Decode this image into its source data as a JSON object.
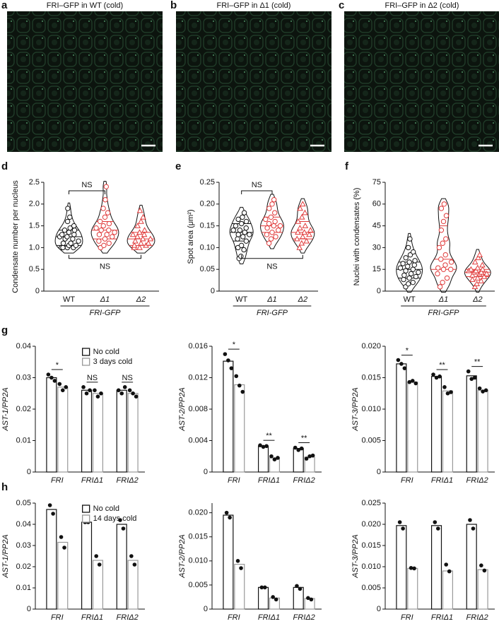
{
  "images": [
    {
      "panel": "a",
      "title": "FRI–GFP in WT (cold)"
    },
    {
      "panel": "b",
      "title": "FRI–GFP in Δ1 (cold)"
    },
    {
      "panel": "c",
      "title": "FRI–GFP in Δ2 (cold)"
    }
  ],
  "chart_data": [
    {
      "type": "violin",
      "panel": "d",
      "ylabel": "Condensate number per nucleus",
      "xlabel": "FRI-GFP",
      "ylim": [
        0,
        2.5
      ],
      "yticks": [
        0,
        0.5,
        {
          "value": 1,
          "label": "1.0"
        },
        1.5,
        {
          "value": 2,
          "label": "2.0"
        },
        2.5
      ],
      "annotations": [
        "NS",
        "NS"
      ],
      "groups": [
        {
          "name": "WT",
          "color": "#111111",
          "marker": "circle",
          "quartiles": [
            1.05,
            1.25,
            1.4
          ],
          "values": [
            1.0,
            1.0,
            1.0,
            1.0,
            1.05,
            1.05,
            1.1,
            1.1,
            1.15,
            1.2,
            1.2,
            1.25,
            1.25,
            1.3,
            1.3,
            1.35,
            1.4,
            1.4,
            1.45,
            1.5,
            1.6,
            1.7,
            1.9
          ]
        },
        {
          "name": "Δ1",
          "color": "#e03a3a",
          "marker": "circle",
          "quartiles": [
            1.2,
            1.4,
            1.6
          ],
          "values": [
            1.0,
            1.05,
            1.1,
            1.15,
            1.2,
            1.25,
            1.3,
            1.3,
            1.35,
            1.4,
            1.4,
            1.45,
            1.5,
            1.55,
            1.6,
            1.7,
            1.8,
            1.9,
            2.1,
            2.4
          ]
        },
        {
          "name": "Δ2",
          "color": "#e03a3a",
          "marker": "triangle",
          "quartiles": [
            1.05,
            1.2,
            1.35
          ],
          "values": [
            1.0,
            1.0,
            1.05,
            1.05,
            1.1,
            1.1,
            1.15,
            1.2,
            1.2,
            1.25,
            1.3,
            1.3,
            1.35,
            1.4,
            1.5,
            1.6,
            1.7,
            1.85
          ]
        }
      ]
    },
    {
      "type": "violin",
      "panel": "e",
      "ylabel": "Spot area (μm²)",
      "xlabel": "FRI-GFP",
      "ylim": [
        0,
        0.25
      ],
      "yticks": [
        0,
        0.05,
        {
          "value": 0.1,
          "label": "0.10"
        },
        0.15,
        {
          "value": 0.2,
          "label": "0.20"
        },
        0.25
      ],
      "annotations": [
        "NS",
        "NS"
      ],
      "groups": [
        {
          "name": "WT",
          "color": "#111111",
          "marker": "circle",
          "quartiles": [
            0.115,
            0.135,
            0.155
          ],
          "values": [
            0.075,
            0.08,
            0.095,
            0.1,
            0.105,
            0.115,
            0.12,
            0.125,
            0.13,
            0.13,
            0.135,
            0.14,
            0.14,
            0.145,
            0.15,
            0.155,
            0.16,
            0.165,
            0.17,
            0.18
          ]
        },
        {
          "name": "Δ1",
          "color": "#e03a3a",
          "marker": "circle",
          "quartiles": [
            0.135,
            0.15,
            0.17
          ],
          "values": [
            0.11,
            0.12,
            0.125,
            0.13,
            0.135,
            0.14,
            0.145,
            0.15,
            0.15,
            0.155,
            0.16,
            0.165,
            0.17,
            0.18,
            0.19,
            0.2,
            0.21
          ]
        },
        {
          "name": "Δ2",
          "color": "#e03a3a",
          "marker": "triangle",
          "quartiles": [
            0.12,
            0.135,
            0.16
          ],
          "values": [
            0.1,
            0.11,
            0.115,
            0.12,
            0.125,
            0.13,
            0.135,
            0.135,
            0.14,
            0.145,
            0.15,
            0.16,
            0.17,
            0.18,
            0.19,
            0.2
          ]
        }
      ]
    },
    {
      "type": "violin",
      "panel": "f",
      "ylabel": "Nuclei with condensates (%)",
      "xlabel": "FRI-GFP",
      "ylim": [
        0,
        75
      ],
      "yticks": [
        0,
        15,
        30,
        45,
        60,
        75
      ],
      "groups": [
        {
          "name": "WT",
          "color": "#111111",
          "marker": "circle",
          "quartiles": [
            9,
            15,
            20
          ],
          "values": [
            3,
            5,
            6,
            8,
            9,
            10,
            11,
            12,
            13,
            14,
            15,
            16,
            17,
            18,
            19,
            20,
            21,
            23,
            25,
            27,
            30,
            36
          ]
        },
        {
          "name": "Δ1",
          "color": "#e03a3a",
          "marker": "circle",
          "quartiles": [
            15,
            22,
            45
          ],
          "values": [
            3,
            6,
            9,
            12,
            15,
            15,
            16,
            18,
            20,
            22,
            25,
            30,
            33,
            36,
            42,
            48,
            52,
            57,
            60
          ]
        },
        {
          "name": "Δ2",
          "color": "#e03a3a",
          "marker": "triangle",
          "quartiles": [
            10,
            13,
            15
          ],
          "values": [
            3,
            5,
            7,
            8,
            9,
            10,
            11,
            12,
            12,
            13,
            13,
            14,
            14,
            15,
            15,
            16,
            18,
            20,
            23,
            25
          ]
        }
      ]
    },
    {
      "type": "bar",
      "panel": "g",
      "ylabel": "AST-1/PP2A",
      "categories": [
        "FRI",
        "FRIΔ1",
        "FRIΔ2"
      ],
      "ylim": [
        0,
        0.04
      ],
      "yticks": [
        0,
        0.01,
        0.02,
        0.03,
        0.04
      ],
      "legend": "top-right",
      "significance": [
        "*",
        "NS",
        "NS"
      ],
      "series": [
        {
          "name": "No cold",
          "color": "#111111",
          "values": [
            0.03,
            0.026,
            0.026
          ],
          "points": [
            [
              0.031,
              0.03,
              0.029
            ],
            [
              0.027,
              0.025,
              0.026
            ],
            [
              0.026,
              0.025,
              0.027
            ]
          ]
        },
        {
          "name": "3 days cold",
          "color": "#999999",
          "values": [
            0.027,
            0.025,
            0.025
          ],
          "points": [
            [
              0.028,
              0.026,
              0.027
            ],
            [
              0.026,
              0.024,
              0.025
            ],
            [
              0.026,
              0.025,
              0.024
            ]
          ]
        }
      ]
    },
    {
      "type": "bar",
      "ylabel": "AST-2/PP2A",
      "categories": [
        "FRI",
        "FRIΔ1",
        "FRIΔ2"
      ],
      "ylim": [
        0,
        0.016
      ],
      "yticks": [
        0,
        0.004,
        0.008,
        0.012,
        0.016
      ],
      "significance": [
        "*",
        "**",
        "**"
      ],
      "series": [
        {
          "color": "#111111",
          "values": [
            0.0141,
            0.0033,
            0.003
          ],
          "points": [
            [
              0.015,
              0.0142,
              0.0132
            ],
            [
              0.0034,
              0.0032,
              0.0033
            ],
            [
              0.0031,
              0.0028,
              0.003
            ]
          ]
        },
        {
          "color": "#999999",
          "values": [
            0.0111,
            0.0018,
            0.0019
          ],
          "points": [
            [
              0.0122,
              0.011,
              0.0102
            ],
            [
              0.002,
              0.0016,
              0.0018
            ],
            [
              0.0017,
              0.002,
              0.0021
            ]
          ]
        }
      ]
    },
    {
      "type": "bar",
      "ylabel": "AST-3/PP2A",
      "categories": [
        "FRI",
        "FRIΔ1",
        "FRIΔ2"
      ],
      "ylim": [
        0,
        0.02
      ],
      "yticks": [
        0,
        0.005,
        {
          "value": 0.01,
          "label": "0.010"
        },
        0.015,
        {
          "value": 0.02,
          "label": "0.020"
        }
      ],
      "significance": [
        "*",
        "**",
        "**"
      ],
      "series": [
        {
          "color": "#111111",
          "values": [
            0.0172,
            0.0152,
            0.0153
          ],
          "points": [
            [
              0.0178,
              0.0172,
              0.0165
            ],
            [
              0.0155,
              0.015,
              0.0152
            ],
            [
              0.016,
              0.0148,
              0.015
            ]
          ]
        },
        {
          "color": "#999999",
          "values": [
            0.0143,
            0.0129,
            0.013
          ],
          "points": [
            [
              0.0143,
              0.0145,
              0.0141
            ],
            [
              0.0135,
              0.0125,
              0.0127
            ],
            [
              0.0133,
              0.0128,
              0.013
            ]
          ]
        }
      ]
    },
    {
      "type": "bar",
      "panel": "h",
      "ylabel": "AST-1/PP2A",
      "categories": [
        "FRI",
        "FRIΔ1",
        "FRIΔ2"
      ],
      "ylim": [
        0,
        0.05
      ],
      "yticks": [
        0,
        0.01,
        0.02,
        0.03,
        0.04,
        0.05
      ],
      "legend": "top-right",
      "series": [
        {
          "name": "No cold",
          "color": "#111111",
          "values": [
            0.047,
            0.041,
            0.04
          ],
          "points": [
            [
              0.049,
              0.045
            ],
            [
              0.041,
              0.041
            ],
            [
              0.042,
              0.038
            ]
          ]
        },
        {
          "name": "14 days cold",
          "color": "#999999",
          "values": [
            0.0315,
            0.023,
            0.023
          ],
          "points": [
            [
              0.034,
              0.029
            ],
            [
              0.025,
              0.021
            ],
            [
              0.025,
              0.021
            ]
          ]
        }
      ]
    },
    {
      "type": "bar",
      "ylabel": "AST-2/PP2A",
      "categories": [
        "FRI",
        "FRIΔ1",
        "FRIΔ2"
      ],
      "ylim": [
        0,
        0.022
      ],
      "yticks": [
        0,
        {
          "value": 0.005,
          "label": "0.005"
        },
        {
          "value": 0.01,
          "label": "0.010"
        },
        0.015,
        {
          "value": 0.02,
          "label": "0.020"
        }
      ],
      "series": [
        {
          "color": "#111111",
          "values": [
            0.0195,
            0.0045,
            0.0045
          ],
          "points": [
            [
              0.02,
              0.019
            ],
            [
              0.0045,
              0.0045
            ],
            [
              0.0048,
              0.0042
            ]
          ]
        },
        {
          "color": "#999999",
          "values": [
            0.0093,
            0.0023,
            0.0022
          ],
          "points": [
            [
              0.01,
              0.0085
            ],
            [
              0.0025,
              0.002
            ],
            [
              0.0023,
              0.002
            ]
          ]
        }
      ]
    },
    {
      "type": "bar",
      "ylabel": "AST-3/PP2A",
      "categories": [
        "FRI",
        "FRIΔ1",
        "FRIΔ2"
      ],
      "ylim": [
        0,
        0.025
      ],
      "yticks": [
        0,
        0.005,
        {
          "value": 0.01,
          "label": "0.010"
        },
        0.015,
        {
          "value": 0.02,
          "label": "0.020"
        },
        0.025
      ],
      "series": [
        {
          "color": "#111111",
          "values": [
            0.0197,
            0.0197,
            0.02
          ],
          "points": [
            [
              0.0205,
              0.019
            ],
            [
              0.0205,
              0.019
            ],
            [
              0.021,
              0.019
            ]
          ]
        },
        {
          "color": "#999999",
          "values": [
            0.0096,
            0.009,
            0.0093
          ],
          "points": [
            [
              0.0097,
              0.0096
            ],
            [
              0.0105,
              0.0089
            ],
            [
              0.0103,
              0.0091
            ]
          ]
        }
      ]
    }
  ]
}
